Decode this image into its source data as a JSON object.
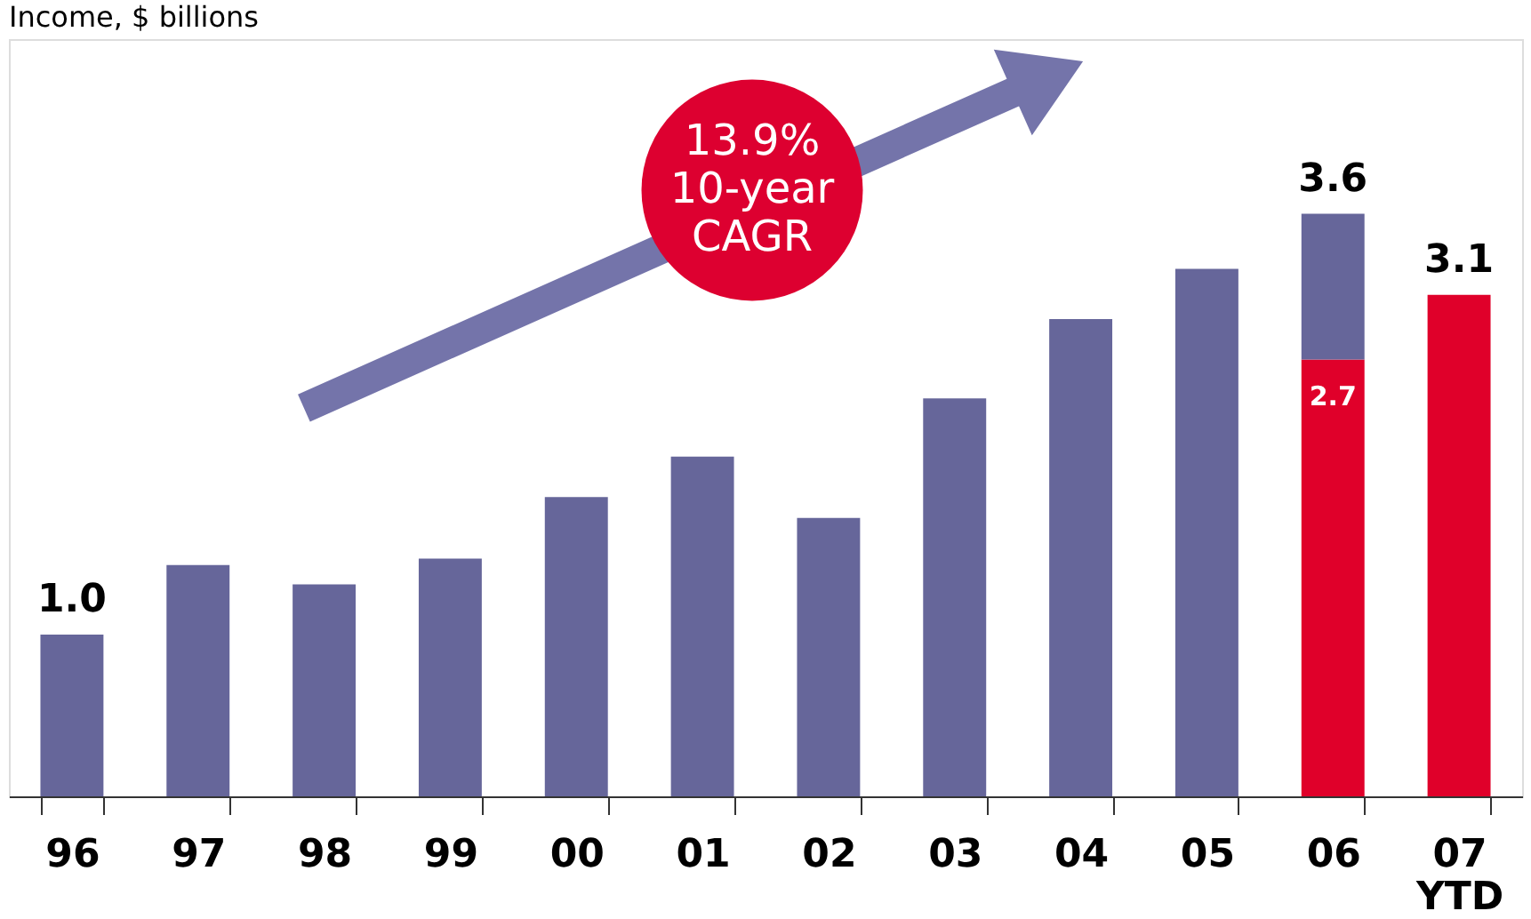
{
  "chart_data": {
    "type": "bar",
    "title": "Income, $ billions",
    "stacked": true,
    "categories": [
      "96",
      "97",
      "98",
      "99",
      "00",
      "01",
      "02",
      "03",
      "04",
      "05",
      "06",
      "07\nYTD"
    ],
    "series": [
      {
        "color": "#e0002a",
        "values": [
          null,
          null,
          null,
          null,
          null,
          null,
          null,
          null,
          null,
          null,
          2.7,
          3.1
        ],
        "value_labels": [
          null,
          null,
          null,
          null,
          null,
          null,
          null,
          null,
          null,
          null,
          "2.7",
          null
        ]
      },
      {
        "color": "#66669a",
        "values": [
          1.0,
          1.43,
          1.31,
          1.47,
          1.85,
          2.1,
          1.72,
          2.46,
          2.95,
          3.26,
          0.9,
          null
        ]
      }
    ],
    "totals": [
      "1.0",
      null,
      null,
      null,
      null,
      null,
      null,
      null,
      null,
      null,
      "3.6",
      "3.1"
    ],
    "annotations": [
      "13.9%\n10-year\nCAGR"
    ],
    "grid": false
  }
}
